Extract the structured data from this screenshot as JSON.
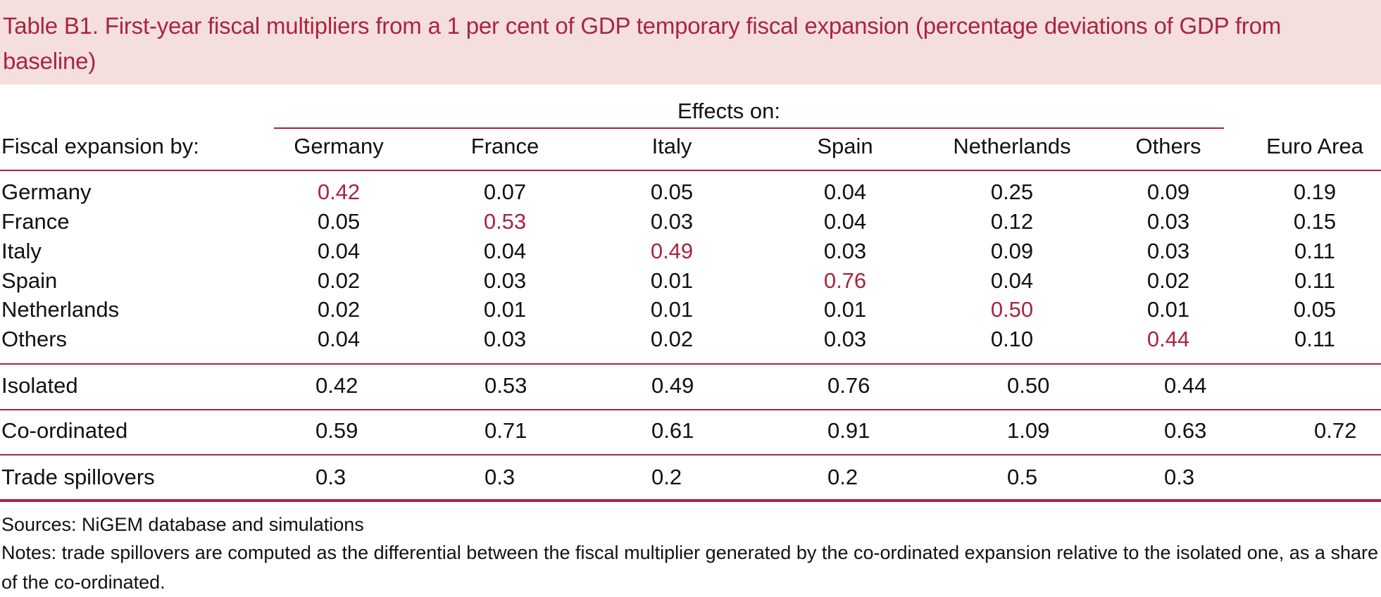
{
  "title": "Table B1. First-year fiscal multipliers from a 1 per cent of GDP temporary fiscal expansion (percentage deviations of GDP from baseline)",
  "header": {
    "group_label": "Effects on:",
    "row_header_label": "Fiscal expansion by:",
    "columns": [
      "Germany",
      "France",
      "Italy",
      "Spain",
      "Netherlands",
      "Others",
      "Euro Area"
    ]
  },
  "rows": [
    {
      "label": "Germany",
      "values": [
        "0.42",
        "0.07",
        "0.05",
        "0.04",
        "0.25",
        "0.09",
        "0.19"
      ],
      "highlight_index": 0
    },
    {
      "label": "France",
      "values": [
        "0.05",
        "0.53",
        "0.03",
        "0.04",
        "0.12",
        "0.03",
        "0.15"
      ],
      "highlight_index": 1
    },
    {
      "label": "Italy",
      "values": [
        "0.04",
        "0.04",
        "0.49",
        "0.03",
        "0.09",
        "0.03",
        "0.11"
      ],
      "highlight_index": 2
    },
    {
      "label": "Spain",
      "values": [
        "0.02",
        "0.03",
        "0.01",
        "0.76",
        "0.04",
        "0.02",
        "0.11"
      ],
      "highlight_index": 3
    },
    {
      "label": "Netherlands",
      "values": [
        "0.02",
        "0.01",
        "0.01",
        "0.01",
        "0.50",
        "0.01",
        "0.05"
      ],
      "highlight_index": 4
    },
    {
      "label": "Others",
      "values": [
        "0.04",
        "0.03",
        "0.02",
        "0.03",
        "0.10",
        "0.44",
        "0.11"
      ],
      "highlight_index": 5
    }
  ],
  "summary_rows": [
    {
      "label": "Isolated",
      "values": [
        "0.42",
        "0.53",
        "0.49",
        "0.76",
        "0.50",
        "0.44",
        ""
      ]
    },
    {
      "label": "Co-ordinated",
      "values": [
        "0.59",
        "0.71",
        "0.61",
        "0.91",
        "1.09",
        "0.63",
        "0.72"
      ]
    },
    {
      "label": "Trade spillovers",
      "values": [
        "0.3",
        "0.3",
        "0.2",
        "0.2",
        "0.5",
        "0.3",
        ""
      ]
    }
  ],
  "sources": "Sources: NiGEM database and simulations",
  "notes": "Notes: trade spillovers are computed as the differential between the fiscal multiplier generated by the co-ordinated expansion relative to the isolated one, as a share of the co-ordinated.",
  "colors": {
    "accent": "#A8253F",
    "title_background": "#F4DFDE",
    "text": "#111111"
  }
}
